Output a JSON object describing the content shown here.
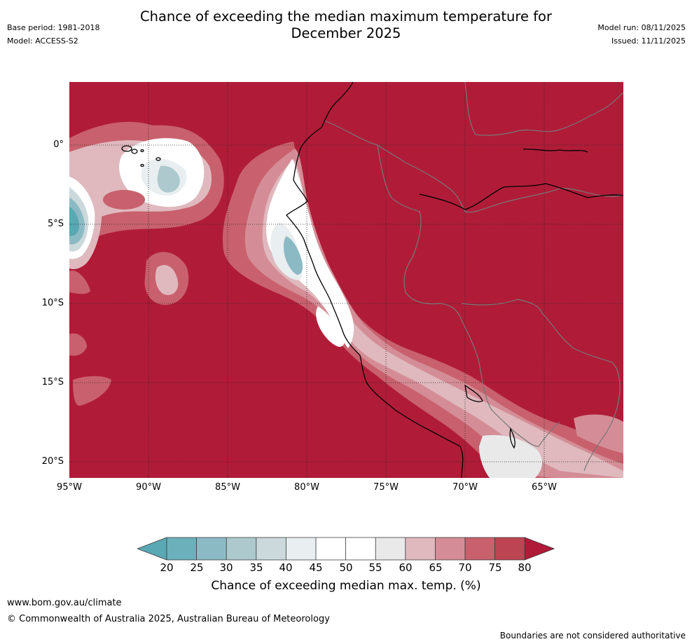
{
  "title": {
    "line1": "Chance of exceeding the median maximum temperature for",
    "line2": "December 2025"
  },
  "meta": {
    "base_period": "Base period: 1981-2018",
    "model": "Model: ACCESS-S2",
    "model_run": "Model run: 08/11/2025",
    "issued": "Issued: 11/11/2025"
  },
  "map": {
    "lat_labels": [
      "0°",
      "5°S",
      "10°S",
      "15°S",
      "20°S"
    ],
    "lon_labels": [
      "95°W",
      "90°W",
      "85°W",
      "80°W",
      "75°W",
      "70°W",
      "65°W"
    ],
    "base_color": "#b01c38",
    "coast_color": "#000000",
    "border_color": "#777777"
  },
  "colorbar": {
    "ticks": [
      "20",
      "25",
      "30",
      "35",
      "40",
      "45",
      "50",
      "55",
      "60",
      "65",
      "70",
      "75",
      "80"
    ],
    "colors": [
      "#5aa8b4",
      "#6cb0bc",
      "#8cbac4",
      "#adc9ce",
      "#cbd9dc",
      "#e9eef0",
      "#ffffff",
      "#ffffff",
      "#e9e9ea",
      "#dfb9be",
      "#d48d96",
      "#c8616d",
      "#bd4453",
      "#b01c38"
    ],
    "label": "Chance of exceeding median max. temp. (%)"
  },
  "footer": {
    "website": "www.bom.gov.au/climate",
    "copyright": "© Commonwealth of Australia 2025, Australian Bureau of Meteorology",
    "disclaimer": "Boundaries are not considered authoritative"
  }
}
